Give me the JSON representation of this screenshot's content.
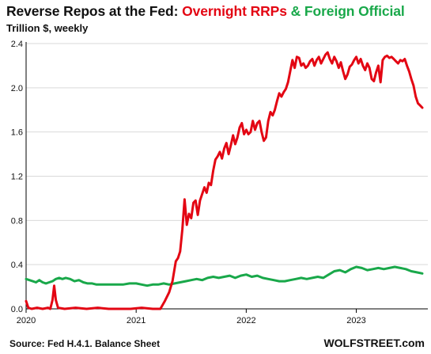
{
  "header": {
    "title_part1": "Reverse Repos at the Fed: ",
    "title_part2": "Overnight RRPs",
    "title_part3": " & ",
    "title_part4": "Foreign Official",
    "subtitle": "Trillion $, weekly"
  },
  "footer": {
    "source": "Source: Fed H.4.1. Balance Sheet",
    "brand": "WOLFSTREET.com"
  },
  "colors": {
    "rrp": "#e30613",
    "foreign": "#19a84a",
    "grid": "#d9d9d9",
    "axis": "#000000",
    "text": "#111111"
  },
  "chart_data": {
    "type": "line",
    "title": "Reverse Repos at the Fed: Overnight RRPs & Foreign Official",
    "subtitle": "Trillion $, weekly",
    "xlabel": "",
    "ylabel": "",
    "xlim": [
      2020.0,
      2023.65
    ],
    "ylim": [
      0,
      2.4
    ],
    "grid": "horizontal",
    "legend": "in-title",
    "y_ticks": [
      "0.0",
      "0.4",
      "0.8",
      "1.2",
      "1.6",
      "2.0",
      "2.4"
    ],
    "x_ticks": [
      {
        "x": 2020,
        "label": "2020"
      },
      {
        "x": 2021,
        "label": "2021"
      },
      {
        "x": 2022,
        "label": "2022"
      },
      {
        "x": 2023,
        "label": "2023"
      }
    ],
    "series": [
      {
        "name": "Overnight RRPs",
        "color": "#e30613",
        "points": [
          [
            2020.0,
            0.07
          ],
          [
            2020.02,
            0.01
          ],
          [
            2020.05,
            0.0
          ],
          [
            2020.1,
            0.01
          ],
          [
            2020.15,
            0.0
          ],
          [
            2020.2,
            0.01
          ],
          [
            2020.22,
            0.0
          ],
          [
            2020.24,
            0.08
          ],
          [
            2020.255,
            0.21
          ],
          [
            2020.27,
            0.08
          ],
          [
            2020.29,
            0.01
          ],
          [
            2020.35,
            0.0
          ],
          [
            2020.45,
            0.01
          ],
          [
            2020.55,
            0.0
          ],
          [
            2020.65,
            0.01
          ],
          [
            2020.75,
            0.0
          ],
          [
            2020.85,
            0.0
          ],
          [
            2020.95,
            0.0
          ],
          [
            2021.05,
            0.01
          ],
          [
            2021.15,
            0.0
          ],
          [
            2021.22,
            0.0
          ],
          [
            2021.26,
            0.07
          ],
          [
            2021.3,
            0.15
          ],
          [
            2021.33,
            0.25
          ],
          [
            2021.36,
            0.43
          ],
          [
            2021.38,
            0.46
          ],
          [
            2021.4,
            0.52
          ],
          [
            2021.42,
            0.72
          ],
          [
            2021.44,
            0.99
          ],
          [
            2021.46,
            0.76
          ],
          [
            2021.48,
            0.86
          ],
          [
            2021.5,
            0.82
          ],
          [
            2021.52,
            0.96
          ],
          [
            2021.54,
            0.98
          ],
          [
            2021.56,
            0.85
          ],
          [
            2021.58,
            0.98
          ],
          [
            2021.6,
            1.04
          ],
          [
            2021.62,
            1.1
          ],
          [
            2021.64,
            1.05
          ],
          [
            2021.66,
            1.14
          ],
          [
            2021.68,
            1.12
          ],
          [
            2021.7,
            1.25
          ],
          [
            2021.72,
            1.35
          ],
          [
            2021.74,
            1.38
          ],
          [
            2021.76,
            1.42
          ],
          [
            2021.78,
            1.36
          ],
          [
            2021.8,
            1.45
          ],
          [
            2021.82,
            1.5
          ],
          [
            2021.84,
            1.4
          ],
          [
            2021.86,
            1.48
          ],
          [
            2021.88,
            1.57
          ],
          [
            2021.9,
            1.49
          ],
          [
            2021.92,
            1.55
          ],
          [
            2021.94,
            1.64
          ],
          [
            2021.96,
            1.68
          ],
          [
            2021.98,
            1.58
          ],
          [
            2022.0,
            1.62
          ],
          [
            2022.02,
            1.58
          ],
          [
            2022.04,
            1.6
          ],
          [
            2022.06,
            1.7
          ],
          [
            2022.08,
            1.62
          ],
          [
            2022.1,
            1.68
          ],
          [
            2022.12,
            1.7
          ],
          [
            2022.14,
            1.6
          ],
          [
            2022.16,
            1.52
          ],
          [
            2022.18,
            1.55
          ],
          [
            2022.2,
            1.7
          ],
          [
            2022.22,
            1.78
          ],
          [
            2022.24,
            1.75
          ],
          [
            2022.26,
            1.8
          ],
          [
            2022.28,
            1.88
          ],
          [
            2022.3,
            1.95
          ],
          [
            2022.32,
            1.92
          ],
          [
            2022.34,
            1.96
          ],
          [
            2022.36,
            1.99
          ],
          [
            2022.38,
            2.05
          ],
          [
            2022.4,
            2.15
          ],
          [
            2022.42,
            2.25
          ],
          [
            2022.44,
            2.18
          ],
          [
            2022.46,
            2.28
          ],
          [
            2022.48,
            2.27
          ],
          [
            2022.5,
            2.2
          ],
          [
            2022.52,
            2.22
          ],
          [
            2022.54,
            2.18
          ],
          [
            2022.56,
            2.2
          ],
          [
            2022.58,
            2.24
          ],
          [
            2022.6,
            2.26
          ],
          [
            2022.62,
            2.2
          ],
          [
            2022.64,
            2.25
          ],
          [
            2022.66,
            2.28
          ],
          [
            2022.68,
            2.22
          ],
          [
            2022.7,
            2.26
          ],
          [
            2022.72,
            2.3
          ],
          [
            2022.74,
            2.32
          ],
          [
            2022.76,
            2.26
          ],
          [
            2022.78,
            2.22
          ],
          [
            2022.8,
            2.28
          ],
          [
            2022.82,
            2.24
          ],
          [
            2022.84,
            2.18
          ],
          [
            2022.86,
            2.23
          ],
          [
            2022.88,
            2.15
          ],
          [
            2022.9,
            2.08
          ],
          [
            2022.92,
            2.12
          ],
          [
            2022.94,
            2.19
          ],
          [
            2022.96,
            2.21
          ],
          [
            2022.98,
            2.25
          ],
          [
            2023.0,
            2.28
          ],
          [
            2023.02,
            2.22
          ],
          [
            2023.04,
            2.26
          ],
          [
            2023.06,
            2.2
          ],
          [
            2023.08,
            2.16
          ],
          [
            2023.1,
            2.22
          ],
          [
            2023.12,
            2.18
          ],
          [
            2023.14,
            2.08
          ],
          [
            2023.16,
            2.06
          ],
          [
            2023.18,
            2.14
          ],
          [
            2023.2,
            2.2
          ],
          [
            2023.22,
            2.05
          ],
          [
            2023.24,
            2.25
          ],
          [
            2023.26,
            2.28
          ],
          [
            2023.28,
            2.29
          ],
          [
            2023.3,
            2.27
          ],
          [
            2023.32,
            2.28
          ],
          [
            2023.34,
            2.26
          ],
          [
            2023.36,
            2.24
          ],
          [
            2023.38,
            2.22
          ],
          [
            2023.4,
            2.25
          ],
          [
            2023.42,
            2.24
          ],
          [
            2023.44,
            2.26
          ],
          [
            2023.46,
            2.2
          ],
          [
            2023.48,
            2.15
          ],
          [
            2023.5,
            2.08
          ],
          [
            2023.52,
            2.02
          ],
          [
            2023.54,
            1.92
          ],
          [
            2023.56,
            1.86
          ],
          [
            2023.58,
            1.84
          ],
          [
            2023.6,
            1.82
          ]
        ]
      },
      {
        "name": "Foreign Official",
        "color": "#19a84a",
        "points": [
          [
            2020.0,
            0.27
          ],
          [
            2020.03,
            0.26
          ],
          [
            2020.06,
            0.25
          ],
          [
            2020.09,
            0.24
          ],
          [
            2020.12,
            0.26
          ],
          [
            2020.15,
            0.24
          ],
          [
            2020.18,
            0.23
          ],
          [
            2020.21,
            0.24
          ],
          [
            2020.24,
            0.25
          ],
          [
            2020.27,
            0.27
          ],
          [
            2020.3,
            0.28
          ],
          [
            2020.33,
            0.27
          ],
          [
            2020.36,
            0.28
          ],
          [
            2020.4,
            0.27
          ],
          [
            2020.44,
            0.25
          ],
          [
            2020.48,
            0.26
          ],
          [
            2020.52,
            0.24
          ],
          [
            2020.56,
            0.23
          ],
          [
            2020.6,
            0.23
          ],
          [
            2020.64,
            0.22
          ],
          [
            2020.7,
            0.22
          ],
          [
            2020.76,
            0.22
          ],
          [
            2020.82,
            0.22
          ],
          [
            2020.88,
            0.22
          ],
          [
            2020.94,
            0.23
          ],
          [
            2021.0,
            0.23
          ],
          [
            2021.05,
            0.22
          ],
          [
            2021.1,
            0.21
          ],
          [
            2021.15,
            0.22
          ],
          [
            2021.2,
            0.22
          ],
          [
            2021.25,
            0.23
          ],
          [
            2021.3,
            0.22
          ],
          [
            2021.35,
            0.23
          ],
          [
            2021.4,
            0.24
          ],
          [
            2021.45,
            0.25
          ],
          [
            2021.5,
            0.26
          ],
          [
            2021.55,
            0.27
          ],
          [
            2021.6,
            0.26
          ],
          [
            2021.65,
            0.28
          ],
          [
            2021.7,
            0.29
          ],
          [
            2021.75,
            0.28
          ],
          [
            2021.8,
            0.29
          ],
          [
            2021.85,
            0.3
          ],
          [
            2021.9,
            0.28
          ],
          [
            2021.95,
            0.3
          ],
          [
            2022.0,
            0.31
          ],
          [
            2022.05,
            0.29
          ],
          [
            2022.1,
            0.3
          ],
          [
            2022.15,
            0.28
          ],
          [
            2022.2,
            0.27
          ],
          [
            2022.25,
            0.26
          ],
          [
            2022.3,
            0.25
          ],
          [
            2022.35,
            0.25
          ],
          [
            2022.4,
            0.26
          ],
          [
            2022.45,
            0.27
          ],
          [
            2022.5,
            0.28
          ],
          [
            2022.55,
            0.27
          ],
          [
            2022.6,
            0.28
          ],
          [
            2022.65,
            0.29
          ],
          [
            2022.7,
            0.28
          ],
          [
            2022.75,
            0.31
          ],
          [
            2022.8,
            0.34
          ],
          [
            2022.85,
            0.35
          ],
          [
            2022.9,
            0.33
          ],
          [
            2022.95,
            0.36
          ],
          [
            2023.0,
            0.38
          ],
          [
            2023.05,
            0.37
          ],
          [
            2023.1,
            0.35
          ],
          [
            2023.15,
            0.36
          ],
          [
            2023.2,
            0.37
          ],
          [
            2023.25,
            0.36
          ],
          [
            2023.3,
            0.37
          ],
          [
            2023.35,
            0.38
          ],
          [
            2023.4,
            0.37
          ],
          [
            2023.45,
            0.36
          ],
          [
            2023.5,
            0.34
          ],
          [
            2023.55,
            0.33
          ],
          [
            2023.6,
            0.32
          ]
        ]
      }
    ]
  }
}
